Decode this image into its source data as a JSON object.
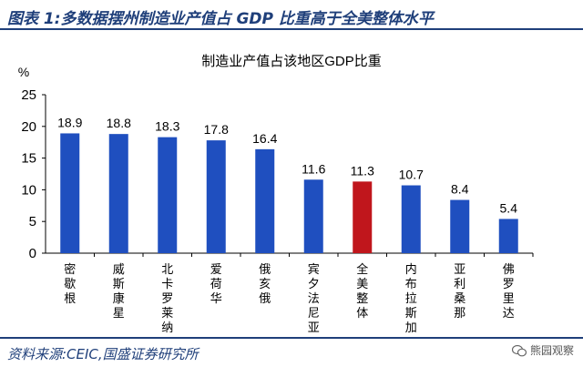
{
  "header": {
    "title": "图表 1:多数据摆州制造业产值占 GDP 比重高于全美整体水平"
  },
  "footer": {
    "source": "资料来源:CEIC,国盛证券研究所"
  },
  "watermark": {
    "text": "熊园观察"
  },
  "chart_data": {
    "type": "bar",
    "title": "制造业产值占该地区GDP比重",
    "ylabel": "%",
    "ylim": [
      0,
      25
    ],
    "yticks": [
      0,
      5,
      10,
      15,
      20,
      25
    ],
    "categories": [
      "密歇根",
      "威斯康星",
      "北卡罗莱纳",
      "爱荷华",
      "俄亥俄",
      "宾夕法尼亚",
      "全美整体",
      "内布拉斯加",
      "亚利桑那",
      "佛罗里达"
    ],
    "values": [
      18.9,
      18.8,
      18.3,
      17.8,
      16.4,
      11.6,
      11.3,
      10.7,
      8.4,
      5.4
    ],
    "data_labels": [
      "18.9",
      "18.8",
      "18.3",
      "17.8",
      "16.4",
      "11.6",
      "11.3",
      "10.7",
      "8.4",
      "5.4"
    ],
    "colors": {
      "default": "#1f4fbf",
      "highlight": "#c0161c"
    },
    "highlight_index": 6,
    "grid": false,
    "legend": "none"
  }
}
